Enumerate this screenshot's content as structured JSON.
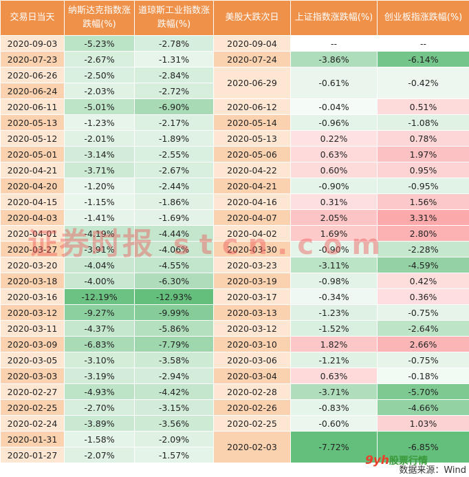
{
  "headers": [
    "交易日当天",
    "纳斯达克指数涨跌幅(%)",
    "道琼斯工业指数涨跌幅(%)",
    "美股大跌次日",
    "上证指数涨跌幅(%)",
    "创业板指涨跌幅(%)"
  ],
  "rows": [
    {
      "date": "2020-09-03",
      "nasdaq": "-5.23%",
      "dow": "-2.78%",
      "next": "2020-09-04",
      "sh": "--",
      "cyb": "--"
    },
    {
      "date": "2020-07-23",
      "nasdaq": "-2.67%",
      "dow": "-1.31%",
      "next": "2020-07-24",
      "sh": "-3.86%",
      "cyb": "-6.14%"
    },
    {
      "date": "2020-06-26",
      "nasdaq": "-2.50%",
      "dow": "-2.84%",
      "next": "2020-06-29",
      "sh": "-0.61%",
      "cyb": "-0.42%",
      "span": 2
    },
    {
      "date": "2020-06-24",
      "nasdaq": "-2.03%",
      "dow": "-2.72%"
    },
    {
      "date": "2020-06-11",
      "nasdaq": "-5.01%",
      "dow": "-6.90%",
      "next": "2020-06-12",
      "sh": "-0.04%",
      "cyb": "0.51%"
    },
    {
      "date": "2020-05-13",
      "nasdaq": "-1.23%",
      "dow": "-2.17%",
      "next": "2020-05-14",
      "sh": "-0.96%",
      "cyb": "-1.08%"
    },
    {
      "date": "2020-05-12",
      "nasdaq": "-2.01%",
      "dow": "-1.89%",
      "next": "2020-05-13",
      "sh": "0.22%",
      "cyb": "0.78%"
    },
    {
      "date": "2020-05-01",
      "nasdaq": "-3.14%",
      "dow": "-2.55%",
      "next": "2020-05-06",
      "sh": "0.63%",
      "cyb": "1.97%"
    },
    {
      "date": "2020-04-21",
      "nasdaq": "-3.71%",
      "dow": "-2.67%",
      "next": "2020-04-22",
      "sh": "0.60%",
      "cyb": "0.95%"
    },
    {
      "date": "2020-04-20",
      "nasdaq": "-1.20%",
      "dow": "-2.44%",
      "next": "2020-04-21",
      "sh": "-0.90%",
      "cyb": "-0.95%"
    },
    {
      "date": "2020-04-15",
      "nasdaq": "-1.15%",
      "dow": "-1.86%",
      "next": "2020-04-16",
      "sh": "0.31%",
      "cyb": "1.56%"
    },
    {
      "date": "2020-04-03",
      "nasdaq": "-1.41%",
      "dow": "-1.69%",
      "next": "2020-04-07",
      "sh": "2.05%",
      "cyb": "3.31%"
    },
    {
      "date": "2020-04-01",
      "nasdaq": "-4.19%",
      "dow": "-4.44%",
      "next": "2020-04-02",
      "sh": "1.69%",
      "cyb": "2.80%"
    },
    {
      "date": "2020-03-27",
      "nasdaq": "-3.91%",
      "dow": "-4.06%",
      "next": "2020-03-30",
      "sh": "-0.90%",
      "cyb": "-2.28%"
    },
    {
      "date": "2020-03-20",
      "nasdaq": "-4.04%",
      "dow": "-4.55%",
      "next": "2020-03-23",
      "sh": "-3.11%",
      "cyb": "-4.59%"
    },
    {
      "date": "2020-03-18",
      "nasdaq": "-4.00%",
      "dow": "-6.30%",
      "next": "2020-03-19",
      "sh": "-0.98%",
      "cyb": "0.42%"
    },
    {
      "date": "2020-03-16",
      "nasdaq": "-12.19%",
      "dow": "-12.93%",
      "next": "2020-03-17",
      "sh": "-0.34%",
      "cyb": "0.36%"
    },
    {
      "date": "2020-03-12",
      "nasdaq": "-9.27%",
      "dow": "-9.99%",
      "next": "2020-03-13",
      "sh": "-1.23%",
      "cyb": "-0.75%"
    },
    {
      "date": "2020-03-11",
      "nasdaq": "-4.37%",
      "dow": "-5.86%",
      "next": "2020-03-12",
      "sh": "-1.52%",
      "cyb": "-2.64%"
    },
    {
      "date": "2020-03-09",
      "nasdaq": "-6.83%",
      "dow": "-7.79%",
      "next": "2020-03-10",
      "sh": "1.82%",
      "cyb": "2.66%"
    },
    {
      "date": "2020-03-05",
      "nasdaq": "-3.10%",
      "dow": "-3.58%",
      "next": "2020-03-06",
      "sh": "-1.21%",
      "cyb": "-0.75%"
    },
    {
      "date": "2020-03-03",
      "nasdaq": "-3.19%",
      "dow": "-2.94%",
      "next": "2020-03-04",
      "sh": "0.63%",
      "cyb": "-0.18%"
    },
    {
      "date": "2020-02-27",
      "nasdaq": "-4.93%",
      "dow": "-4.42%",
      "next": "2020-02-28",
      "sh": "-3.71%",
      "cyb": "-5.70%"
    },
    {
      "date": "2020-02-25",
      "nasdaq": "-2.70%",
      "dow": "-3.15%",
      "next": "2020-02-26",
      "sh": "-0.83%",
      "cyb": "-4.66%"
    },
    {
      "date": "2020-02-24",
      "nasdaq": "-3.89%",
      "dow": "-3.56%",
      "next": "2020-02-25",
      "sh": "-0.60%",
      "cyb": "1.03%"
    },
    {
      "date": "2020-01-31",
      "nasdaq": "-1.58%",
      "dow": "-2.09%",
      "next": "2020-02-03",
      "sh": "-7.72%",
      "cyb": "-6.85%",
      "span": 2
    },
    {
      "date": "2020-01-27",
      "nasdaq": "-2.07%",
      "dow": "-1.57%"
    }
  ],
  "watermark_a": "证券时报",
  "watermark_b": "stcn.com",
  "logo": "9yh",
  "logo_sub": "股票行情",
  "source": "数据来源：Wind"
}
